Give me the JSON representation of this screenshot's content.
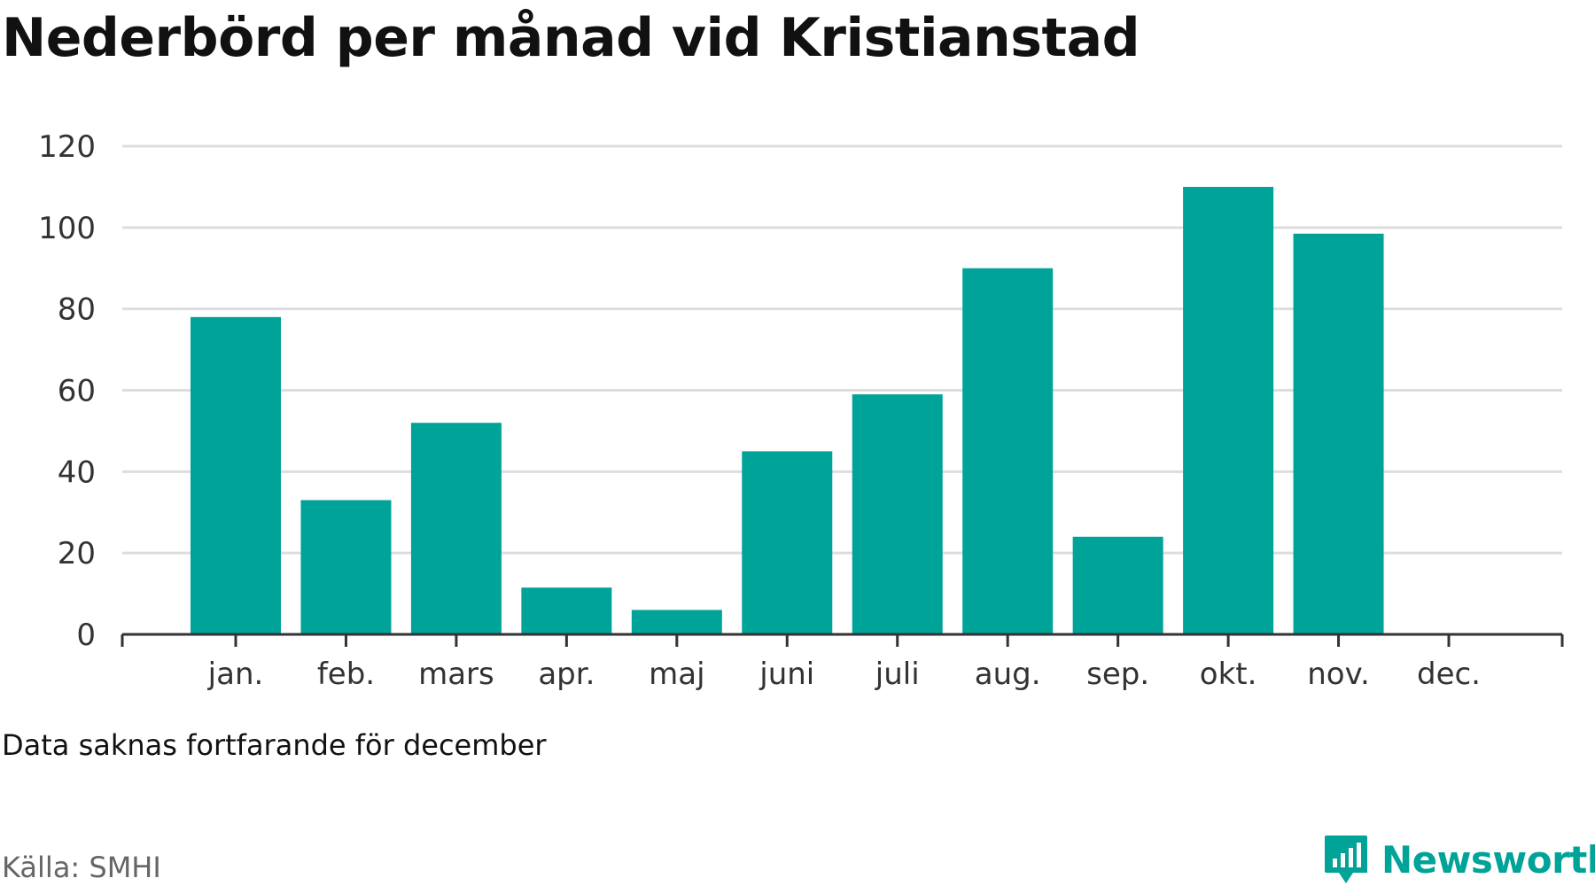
{
  "header": {
    "title": "Nederbörd per månad vid Kristianstad"
  },
  "footer": {
    "note": "Data saknas fortfarande för december",
    "source": "Källa: SMHI",
    "brand": "Newsworthy"
  },
  "colors": {
    "bar": "#00a398",
    "grid": "#dddddd",
    "axis": "#333333"
  },
  "icons": {
    "brand": "bar-chart-speech-bubble-icon"
  },
  "chart_data": {
    "type": "bar",
    "title": "Nederbörd per månad vid Kristianstad",
    "xlabel": "",
    "ylabel": "",
    "categories": [
      "jan.",
      "feb.",
      "mars",
      "apr.",
      "maj",
      "juni",
      "juli",
      "aug.",
      "sep.",
      "okt.",
      "nov.",
      "dec."
    ],
    "values": [
      78,
      33,
      52,
      11.5,
      6,
      45,
      59,
      90,
      24,
      110,
      98.5,
      null
    ],
    "ylim": [
      0,
      120
    ],
    "yticks": [
      0,
      20,
      40,
      60,
      80,
      100,
      120
    ],
    "grid": true,
    "legend": false
  }
}
